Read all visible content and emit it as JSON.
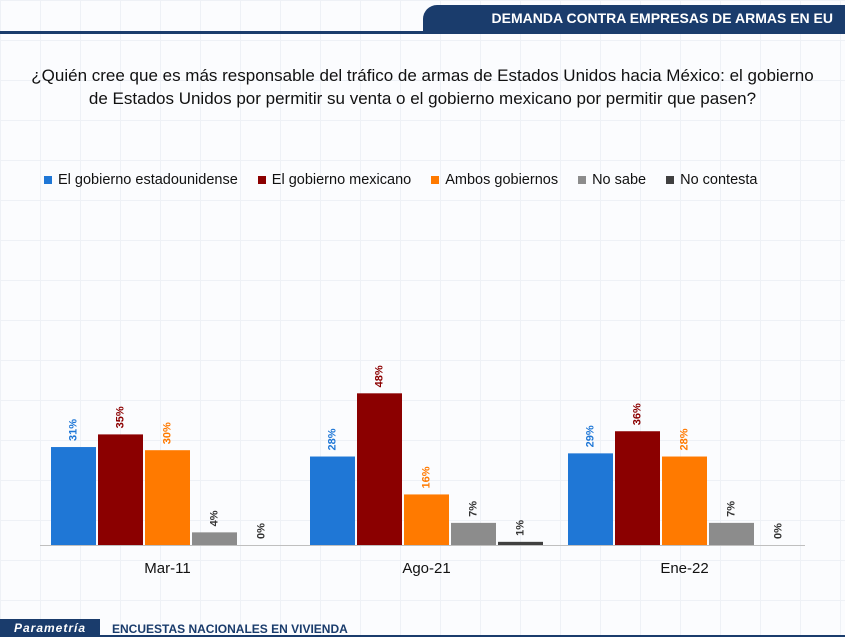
{
  "header": {
    "title": "DEMANDA CONTRA EMPRESAS DE ARMAS EN EU"
  },
  "question": "¿Quién cree que es más responsable del tráfico de armas de Estados Unidos hacia México: el gobierno de Estados Unidos por permitir su venta o el gobierno mexicano por permitir que pasen?",
  "footer": {
    "brand": "Parametría",
    "label": "ENCUESTAS NACIONALES EN VIVIENDA"
  },
  "chart_data": {
    "type": "bar",
    "categories": [
      "Mar-11",
      "Ago-21",
      "Ene-22"
    ],
    "series": [
      {
        "name": "El gobierno estadounidense",
        "color": "#1f77d6",
        "values": [
          31,
          28,
          29
        ]
      },
      {
        "name": "El gobierno mexicano",
        "color": "#8b0000",
        "values": [
          35,
          48,
          36
        ]
      },
      {
        "name": "Ambos gobiernos",
        "color": "#ff7a00",
        "values": [
          30,
          16,
          28
        ]
      },
      {
        "name": "No sabe",
        "color": "#8c8c8c",
        "values": [
          4,
          7,
          7
        ]
      },
      {
        "name": "No contesta",
        "color": "#404040",
        "values": [
          0,
          1,
          0
        ]
      }
    ],
    "value_suffix": "%",
    "ylim": [
      0,
      50
    ],
    "legend_position": "top",
    "grid": false
  }
}
